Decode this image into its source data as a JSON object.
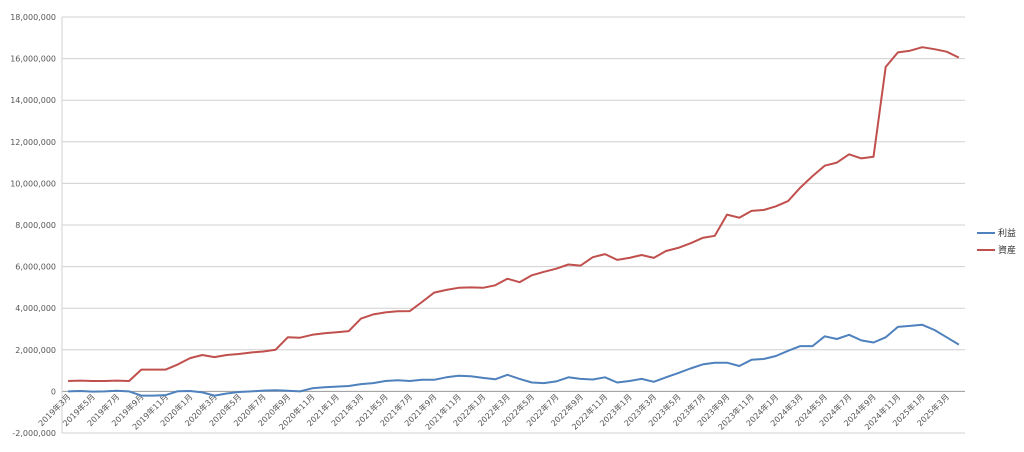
{
  "chart_data": {
    "type": "line",
    "title": "",
    "xlabel": "",
    "ylabel": "",
    "ylim": [
      -2000000,
      18000000
    ],
    "grid": true,
    "legend_position": "right",
    "y_ticks": [
      "-2,000,000",
      "0",
      "2,000,000",
      "4,000,000",
      "6,000,000",
      "8,000,000",
      "10,000,000",
      "12,000,000",
      "14,000,000",
      "16,000,000",
      "18,000,000"
    ],
    "y_tick_values": [
      -2000000,
      0,
      2000000,
      4000000,
      6000000,
      8000000,
      10000000,
      12000000,
      14000000,
      16000000,
      18000000
    ],
    "x_tick_labels": [
      "2019年3月",
      "2019年5月",
      "2019年7月",
      "2019年9月",
      "2019年11月",
      "2020年1月",
      "2020年3月",
      "2020年5月",
      "2020年7月",
      "2020年9月",
      "2020年11月",
      "2021年1月",
      "2021年3月",
      "2021年5月",
      "2021年7月",
      "2021年9月",
      "2021年11月",
      "2022年1月",
      "2022年3月",
      "2022年5月",
      "2022年7月",
      "2022年9月",
      "2022年11月",
      "2023年1月",
      "2023年3月",
      "2023年5月",
      "2023年7月",
      "2023年9月",
      "2023年11月",
      "2024年1月",
      "2024年3月",
      "2024年5月",
      "2024年7月",
      "2024年9月",
      "2024年11月",
      "2025年1月",
      "2025年3月"
    ],
    "months": [
      "2019年3月",
      "2019年4月",
      "2019年5月",
      "2019年6月",
      "2019年7月",
      "2019年8月",
      "2019年9月",
      "2019年10月",
      "2019年11月",
      "2019年12月",
      "2020年1月",
      "2020年2月",
      "2020年3月",
      "2020年4月",
      "2020年5月",
      "2020年6月",
      "2020年7月",
      "2020年8月",
      "2020年9月",
      "2020年10月",
      "2020年11月",
      "2020年12月",
      "2021年1月",
      "2021年2月",
      "2021年3月",
      "2021年4月",
      "2021年5月",
      "2021年6月",
      "2021年7月",
      "2021年8月",
      "2021年9月",
      "2021年10月",
      "2021年11月",
      "2021年12月",
      "2022年1月",
      "2022年2月",
      "2022年3月",
      "2022年4月",
      "2022年5月",
      "2022年6月",
      "2022年7月",
      "2022年8月",
      "2022年9月",
      "2022年10月",
      "2022年11月",
      "2022年12月",
      "2023年1月",
      "2023年2月",
      "2023年3月",
      "2023年4月",
      "2023年5月",
      "2023年6月",
      "2023年7月",
      "2023年8月",
      "2023年9月",
      "2023年10月",
      "2023年11月",
      "2023年12月",
      "2024年1月",
      "2024年2月",
      "2024年3月",
      "2024年4月",
      "2024年5月",
      "2024年6月",
      "2024年7月",
      "2024年8月",
      "2024年9月",
      "2024年10月",
      "2024年11月",
      "2024年12月",
      "2025年1月",
      "2025年2月",
      "2025年3月",
      "2025年4月"
    ],
    "series": [
      {
        "name": "利益",
        "color": "#4f81bd",
        "values": [
          0,
          20000,
          -10000,
          0,
          30000,
          0,
          -200000,
          -200000,
          -180000,
          10000,
          20000,
          -50000,
          -200000,
          -100000,
          -30000,
          0,
          40000,
          60000,
          30000,
          0,
          150000,
          200000,
          230000,
          260000,
          350000,
          400000,
          500000,
          540000,
          500000,
          560000,
          560000,
          680000,
          750000,
          730000,
          650000,
          580000,
          800000,
          600000,
          430000,
          400000,
          480000,
          680000,
          600000,
          570000,
          680000,
          430000,
          500000,
          600000,
          460000,
          680000,
          880000,
          1100000,
          1300000,
          1380000,
          1380000,
          1220000,
          1520000,
          1560000,
          1700000,
          1950000,
          2180000,
          2180000,
          2650000,
          2520000,
          2720000,
          2450000,
          2350000,
          2600000,
          3100000,
          3150000,
          3200000,
          2950000,
          2600000,
          2250000
        ]
      },
      {
        "name": "資産",
        "color": "#c0504d",
        "values": [
          500000,
          520000,
          500000,
          500000,
          520000,
          500000,
          1050000,
          1050000,
          1050000,
          1300000,
          1600000,
          1750000,
          1650000,
          1750000,
          1800000,
          1870000,
          1920000,
          2000000,
          2600000,
          2580000,
          2720000,
          2800000,
          2840000,
          2900000,
          3500000,
          3700000,
          3800000,
          3850000,
          3860000,
          4300000,
          4750000,
          4880000,
          4980000,
          5000000,
          4980000,
          5100000,
          5420000,
          5250000,
          5580000,
          5750000,
          5900000,
          6100000,
          6050000,
          6450000,
          6600000,
          6320000,
          6420000,
          6560000,
          6420000,
          6750000,
          6900000,
          7120000,
          7380000,
          7480000,
          8500000,
          8350000,
          8680000,
          8720000,
          8900000,
          9150000,
          9800000,
          10350000,
          10850000,
          11000000,
          11400000,
          11200000,
          11280000,
          15600000,
          16300000,
          16380000,
          16550000,
          16450000,
          16330000,
          16050000
        ]
      }
    ]
  }
}
